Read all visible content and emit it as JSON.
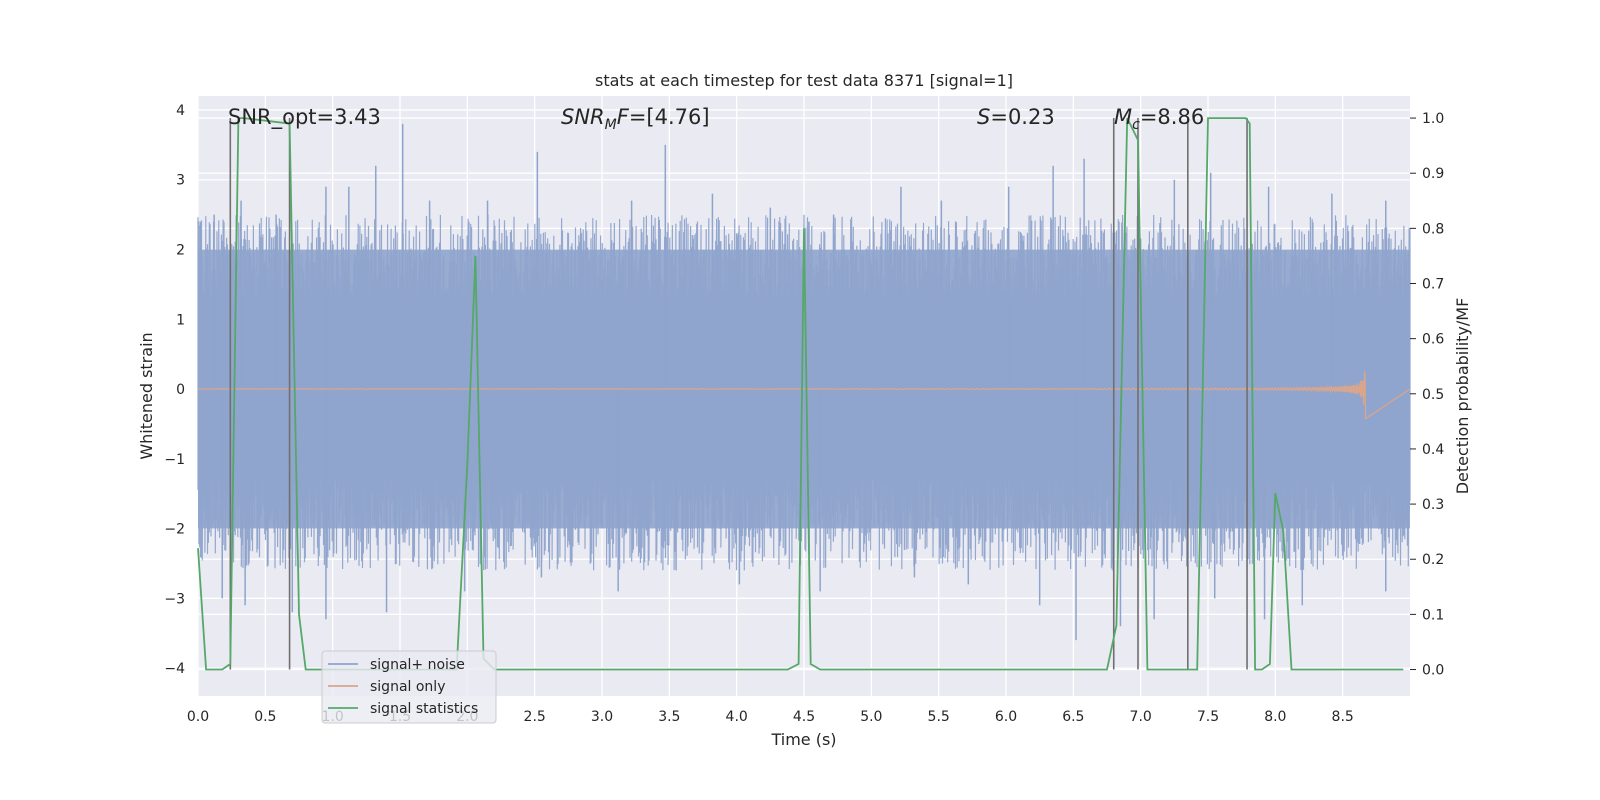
{
  "chart_data": {
    "type": "line",
    "title": "stats at each timestep for test data 8371 [signal=1]",
    "xlabel": "Time (s)",
    "ylabel": "Whitened strain",
    "y2label": "Detection probability/MF",
    "xlim": [
      0,
      9
    ],
    "ylim": [
      -4.4,
      4.2
    ],
    "y2lim": [
      -0.048,
      1.04
    ],
    "xticks": [
      "0.0",
      "0.5",
      "1.0",
      "1.5",
      "2.0",
      "2.5",
      "3.0",
      "3.5",
      "4.0",
      "4.5",
      "5.0",
      "5.5",
      "6.0",
      "6.5",
      "7.0",
      "7.5",
      "8.0",
      "8.5"
    ],
    "yticks": [
      "4",
      "3",
      "2",
      "1",
      "0",
      "−1",
      "−2",
      "−3",
      "−4"
    ],
    "y2ticks": [
      "1.0",
      "0.9",
      "0.8",
      "0.7",
      "0.6",
      "0.5",
      "0.4",
      "0.3",
      "0.2",
      "0.1",
      "0.0"
    ],
    "grid": true,
    "legend_position": "lower-left",
    "annotations": {
      "snr_opt": "SNR_opt=3.43",
      "snr_mf_main": "SNR",
      "snr_mf_sub": "M",
      "snr_mf_rest": "F=[4.76]",
      "s_value_main": "S",
      "s_value_rest": "=0.23",
      "mc_main": "M",
      "mc_sub": "c",
      "mc_rest": "=8.86"
    },
    "series": [
      {
        "name": "signal+ noise",
        "color": "#8fa4cc",
        "note_style": "dense noise band",
        "envelope": [
          -2.5,
          2.5
        ],
        "spikes": [
          [
            0.02,
            2.4
          ],
          [
            0.12,
            2.5
          ],
          [
            0.32,
            2.7
          ],
          [
            0.58,
            2.5
          ],
          [
            0.95,
            2.9
          ],
          [
            1.12,
            2.9
          ],
          [
            1.32,
            3.2
          ],
          [
            1.52,
            3.8
          ],
          [
            1.72,
            2.7
          ],
          [
            2.15,
            2.7
          ],
          [
            2.52,
            3.4
          ],
          [
            3.22,
            2.7
          ],
          [
            3.47,
            3.5
          ],
          [
            3.82,
            2.8
          ],
          [
            4.25,
            2.6
          ],
          [
            4.72,
            2.5
          ],
          [
            5.22,
            2.9
          ],
          [
            5.52,
            2.7
          ],
          [
            6.02,
            2.9
          ],
          [
            6.35,
            3.2
          ],
          [
            6.58,
            3.3
          ],
          [
            7.25,
            3.0
          ],
          [
            7.52,
            3.1
          ],
          [
            7.95,
            2.9
          ],
          [
            8.42,
            2.8
          ],
          [
            8.82,
            2.7
          ],
          [
            0.18,
            -3.0
          ],
          [
            0.35,
            -3.1
          ],
          [
            0.7,
            -3.2
          ],
          [
            0.95,
            -3.3
          ],
          [
            1.4,
            -3.2
          ],
          [
            1.98,
            -2.9
          ],
          [
            2.55,
            -2.7
          ],
          [
            3.12,
            -2.9
          ],
          [
            3.55,
            -2.6
          ],
          [
            4.02,
            -2.8
          ],
          [
            4.62,
            -2.9
          ],
          [
            5.32,
            -2.7
          ],
          [
            5.72,
            -2.8
          ],
          [
            6.25,
            -3.1
          ],
          [
            6.52,
            -3.6
          ],
          [
            6.85,
            -3.4
          ],
          [
            7.1,
            -3.3
          ],
          [
            7.55,
            -3.0
          ],
          [
            7.92,
            -3.3
          ],
          [
            8.2,
            -3.1
          ],
          [
            8.82,
            -2.9
          ]
        ]
      },
      {
        "name": "signal only",
        "color": "#d9a58d",
        "x_start": 0.0,
        "x_peak": 8.67,
        "peak_amplitude": 0.5
      },
      {
        "name": "signal statistics",
        "color": "#55a868",
        "axis": "right",
        "x": [
          0.0,
          0.06,
          0.18,
          0.24,
          0.3,
          0.34,
          0.68,
          0.75,
          0.8,
          0.9,
          1.92,
          2.0,
          2.06,
          2.12,
          2.2,
          4.38,
          4.46,
          4.5,
          4.55,
          4.62,
          6.75,
          6.82,
          6.9,
          6.98,
          7.05,
          7.35,
          7.42,
          7.5,
          7.78,
          7.81,
          7.85,
          7.9,
          7.96,
          8.0,
          8.06,
          8.12,
          8.16,
          8.95
        ],
        "y": [
          0.22,
          0.0,
          0.0,
          0.01,
          1.0,
          1.0,
          0.99,
          0.1,
          0.0,
          0.0,
          0.0,
          0.37,
          0.75,
          0.02,
          0.0,
          0.0,
          0.01,
          0.8,
          0.01,
          0.0,
          0.0,
          0.08,
          1.0,
          0.96,
          0.0,
          0.0,
          0.0,
          1.0,
          1.0,
          0.99,
          0.0,
          0.0,
          0.01,
          0.32,
          0.25,
          0.0,
          0.0,
          0.0
        ]
      }
    ],
    "vlines": [
      0.24,
      0.68,
      6.8,
      6.98,
      7.35,
      7.79
    ]
  }
}
